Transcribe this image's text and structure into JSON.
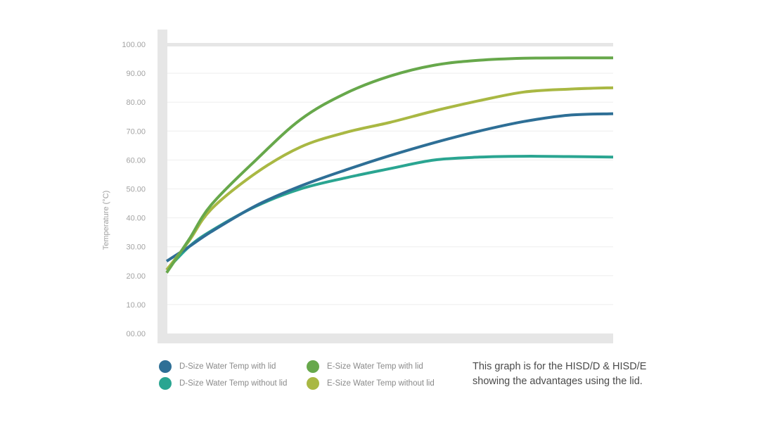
{
  "chart_data": {
    "type": "line",
    "ylabel": "Temperature (°C)",
    "xlabel": "",
    "ylim": [
      0,
      100
    ],
    "yticks": [
      "00.00",
      "10.00",
      "20.00",
      "30.00",
      "40.00",
      "50.00",
      "60.00",
      "70.00",
      "80.00",
      "90.00",
      "100.00"
    ],
    "xlim": [
      0,
      10
    ],
    "grid": true,
    "legend_placement": "bottom-left",
    "series": [
      {
        "name": "D-Size Water Temp with lid",
        "color": "#2e6f96",
        "x": [
          0,
          0.5,
          1,
          2,
          3,
          4,
          5,
          6,
          7,
          8,
          9,
          10
        ],
        "y": [
          25.0,
          30.0,
          35.2,
          44.2,
          51.0,
          56.5,
          61.5,
          66.0,
          70.0,
          73.3,
          75.5,
          76.0
        ]
      },
      {
        "name": "D-Size Water Temp without lid",
        "color": "#2aa591",
        "x": [
          0,
          0.5,
          1,
          2,
          3,
          4,
          5,
          6,
          7,
          8,
          9,
          10
        ],
        "y": [
          22.0,
          30.0,
          35.5,
          44.0,
          50.0,
          53.8,
          57.0,
          60.0,
          61.0,
          61.3,
          61.2,
          61.0
        ]
      },
      {
        "name": "E-Size Water Temp with lid",
        "color": "#67a84b",
        "x": [
          0,
          0.5,
          1,
          2,
          3,
          4,
          5,
          6,
          7,
          8,
          9,
          10
        ],
        "y": [
          21.0,
          32.5,
          44.5,
          60.0,
          74.0,
          83.0,
          89.0,
          92.8,
          94.5,
          95.2,
          95.3,
          95.3
        ]
      },
      {
        "name": "E-Size Water Temp without lid",
        "color": "#a9b843",
        "x": [
          0,
          0.5,
          1,
          2,
          3,
          4,
          5,
          6,
          7,
          8,
          9,
          10
        ],
        "y": [
          22.0,
          32.0,
          43.0,
          55.5,
          64.5,
          69.5,
          73.0,
          77.0,
          80.5,
          83.5,
          84.5,
          85.0
        ]
      }
    ]
  },
  "note": {
    "line1": "This graph is for the HISD/D & HISD/E",
    "line2": "showing the advantages using the lid."
  }
}
